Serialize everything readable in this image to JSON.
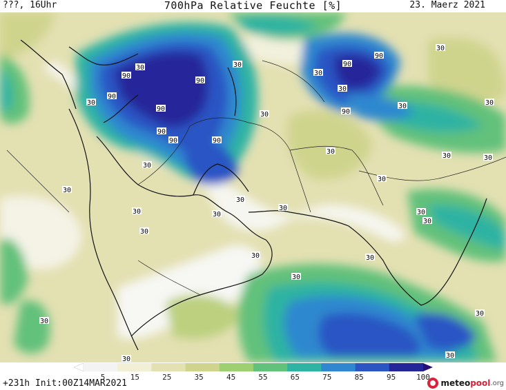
{
  "header": {
    "left": "???, 16Uhr",
    "title": "700hPa Relative Feuchte [%]",
    "date": "23. Maerz 2021"
  },
  "footer": {
    "run_info": "+231h Init:00Z14MAR2021",
    "logo_meteo": "meteo",
    "logo_pool": "pool",
    "logo_org": ".org"
  },
  "scale": {
    "ticks": [
      "5",
      "15",
      "25",
      "35",
      "45",
      "55",
      "65",
      "75",
      "85",
      "95",
      "100"
    ],
    "colors": [
      "#ffffff",
      "#f3f3f3",
      "#f1efd6",
      "#e3e0b2",
      "#cfd48d",
      "#9ecf70",
      "#62c17a",
      "#2fb3a3",
      "#2f88cf",
      "#2c55c4",
      "#25259a",
      "#2a0e78"
    ]
  },
  "contour_labels": {
    "value_90": "90",
    "value_30": "30"
  }
}
